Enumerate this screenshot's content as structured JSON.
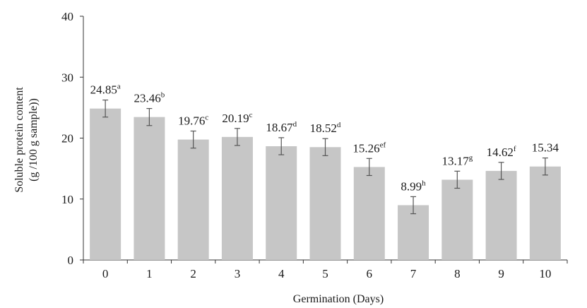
{
  "chart_data": {
    "type": "bar",
    "title": "",
    "xlabel": "Germination (Days)",
    "ylabel_line1": "Soluble protein content",
    "ylabel_line2": "(g /100 g sample))",
    "ylim": [
      0,
      40
    ],
    "yticks": [
      "0",
      "10",
      "20",
      "30",
      "40"
    ],
    "categories": [
      "0",
      "1",
      "2",
      "3",
      "4",
      "5",
      "6",
      "7",
      "8",
      "9",
      "10"
    ],
    "values": [
      24.85,
      23.46,
      19.76,
      20.19,
      18.67,
      18.52,
      15.26,
      8.99,
      13.17,
      14.62,
      15.34
    ],
    "errors": [
      1.4,
      1.4,
      1.4,
      1.4,
      1.4,
      1.4,
      1.4,
      1.4,
      1.4,
      1.4,
      1.4
    ],
    "value_labels": [
      "24.85",
      "23.46",
      "19.76",
      "20.19",
      "18.67",
      "18.52",
      "15.26",
      "8.99",
      "13.17",
      "14.62",
      "15.34"
    ],
    "significance_letters": [
      "a",
      "b",
      "c",
      "c",
      "d",
      "d",
      "ef",
      "h",
      "g",
      "f",
      ""
    ],
    "grid": false,
    "legend": "none",
    "bar_color": "#c6c6c6",
    "error_bar_color": "#555555",
    "axis_color": "#333333"
  }
}
